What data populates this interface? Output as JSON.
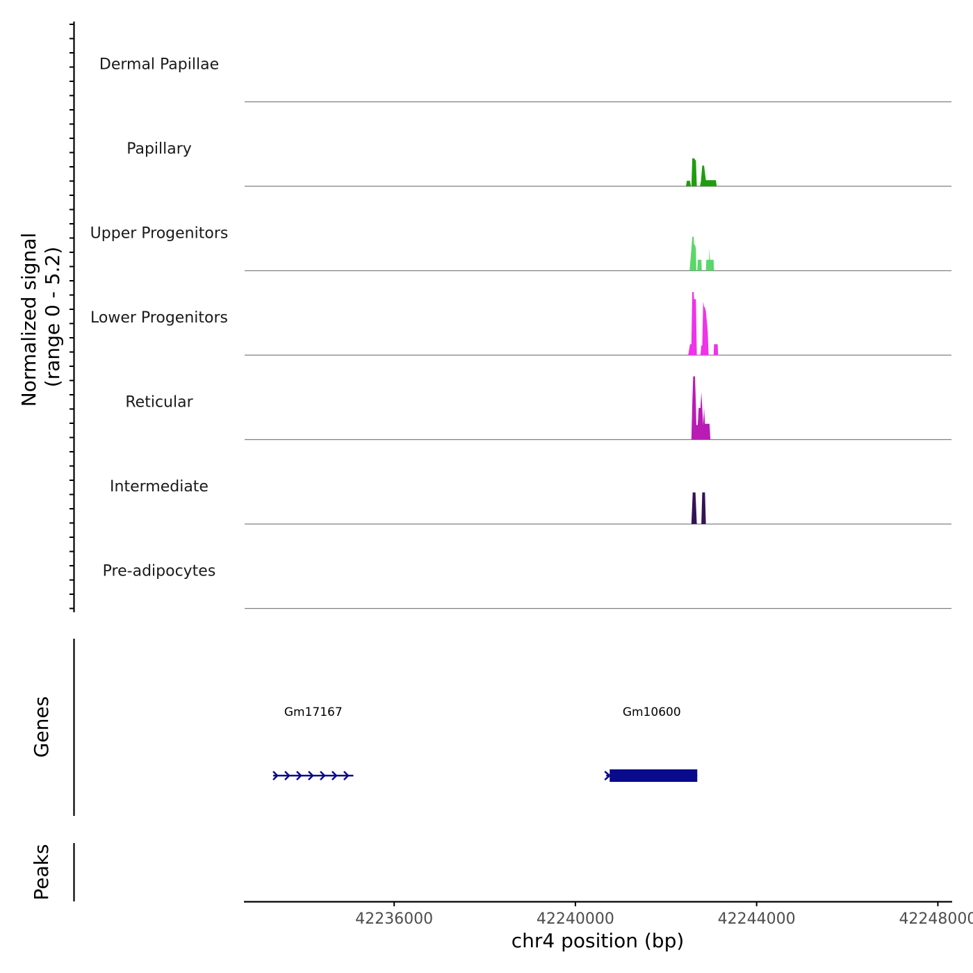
{
  "chart_data": {
    "type": "area",
    "title": "",
    "ylabel_line1": "Normalized signal",
    "ylabel_line2": "(range 0 - 5.2)",
    "ylim": [
      0,
      5.2
    ],
    "xlabel": "chr4 position (bp)",
    "xlim": [
      42232700,
      42248300
    ],
    "x_ticks": [
      42236000,
      42240000,
      42244000,
      42248000
    ],
    "x_tick_labels": [
      "42236000",
      "42240000",
      "42244000",
      "42248000"
    ],
    "tracks": [
      {
        "name": "Dermal Papillae",
        "color": "#1e9e0e",
        "segments": []
      },
      {
        "name": "Papillary",
        "color": "#1e9e0e",
        "segments": [
          {
            "x": [
              42242440,
              42242460,
              42242530,
              42242550
            ],
            "y": [
              0,
              0.45,
              0.45,
              0
            ]
          },
          {
            "x": [
              42242560,
              42242580,
              42242620,
              42242660,
              42242680
            ],
            "y": [
              0,
              2.3,
              2.3,
              2.1,
              0
            ]
          },
          {
            "x": [
              42242750,
              42242770,
              42242800,
              42242840,
              42242880,
              42242920,
              42243100,
              42243120
            ],
            "y": [
              0,
              0.4,
              1.7,
              1.7,
              0.5,
              0.5,
              0.5,
              0
            ]
          }
        ]
      },
      {
        "name": "Upper Progenitors",
        "color": "#5bd66a",
        "segments": [
          {
            "x": [
              42242520,
              42242560,
              42242580,
              42242610,
              42242620,
              42242650,
              42242660,
              42242670
            ],
            "y": [
              0,
              1.8,
              2.8,
              2.8,
              2.2,
              2.0,
              1.8,
              0
            ]
          },
          {
            "x": [
              42242690,
              42242700,
              42242780,
              42242790
            ],
            "y": [
              0,
              0.9,
              0.9,
              0
            ]
          },
          {
            "x": [
              42242880,
              42242890,
              42242950,
              42242960,
              42242970,
              42242980,
              42243050,
              42243060
            ],
            "y": [
              0,
              0.9,
              0.9,
              1.9,
              0.9,
              0.9,
              0.9,
              0
            ]
          }
        ]
      },
      {
        "name": "Lower Progenitors",
        "color": "#ee33e8",
        "segments": [
          {
            "x": [
              42242490,
              42242530,
              42242560,
              42242580,
              42242610,
              42242620,
              42242660,
              42242680
            ],
            "y": [
              0,
              0.9,
              0.9,
              5.2,
              5.2,
              4.6,
              4.6,
              0
            ]
          },
          {
            "x": [
              42242760,
              42242780,
              42242800,
              42242820,
              42242840,
              42242860,
              42242880,
              42242920,
              42242940
            ],
            "y": [
              0,
              0.8,
              0.8,
              4.4,
              4.0,
              3.9,
              3.6,
              2.0,
              0
            ]
          },
          {
            "x": [
              42243050,
              42243060,
              42243100,
              42243140,
              42243150
            ],
            "y": [
              0,
              0.9,
              0.9,
              0.9,
              0
            ]
          }
        ]
      },
      {
        "name": "Reticular",
        "color": "#b81cb5",
        "segments": [
          {
            "x": [
              42242560,
              42242580,
              42242600,
              42242640,
              42242660,
              42242670,
              42242700,
              42242720,
              42242760,
              42242780,
              42242800,
              42242820,
              42242840,
              42242860,
              42242880,
              42242920,
              42242960,
              42242980
            ],
            "y": [
              0,
              3.0,
              5.2,
              5.2,
              2.8,
              1.2,
              1.2,
              2.6,
              2.6,
              3.9,
              2.6,
              1.2,
              2.6,
              1.3,
              1.3,
              1.3,
              1.3,
              0
            ]
          }
        ]
      },
      {
        "name": "Intermediate",
        "color": "#351257",
        "segments": [
          {
            "x": [
              42242560,
              42242590,
              42242650,
              42242680
            ],
            "y": [
              0,
              2.6,
              2.6,
              0
            ]
          },
          {
            "x": [
              42242780,
              42242800,
              42242860,
              42242880
            ],
            "y": [
              0,
              2.6,
              2.6,
              0
            ]
          }
        ]
      },
      {
        "name": "Pre-adipocytes",
        "color": "#1e9e0e",
        "segments": []
      }
    ],
    "genes_label": "Genes",
    "genes": [
      {
        "name": "Gm17167",
        "start": 42233330,
        "end": 42235100,
        "strand": "+",
        "thick": false
      },
      {
        "name": "Gm10600",
        "start": 42240680,
        "end": 42242690,
        "strand": "+",
        "thick": true
      }
    ],
    "gene_color": "#0a0a8c",
    "peaks_label": "Peaks",
    "peaks": []
  }
}
